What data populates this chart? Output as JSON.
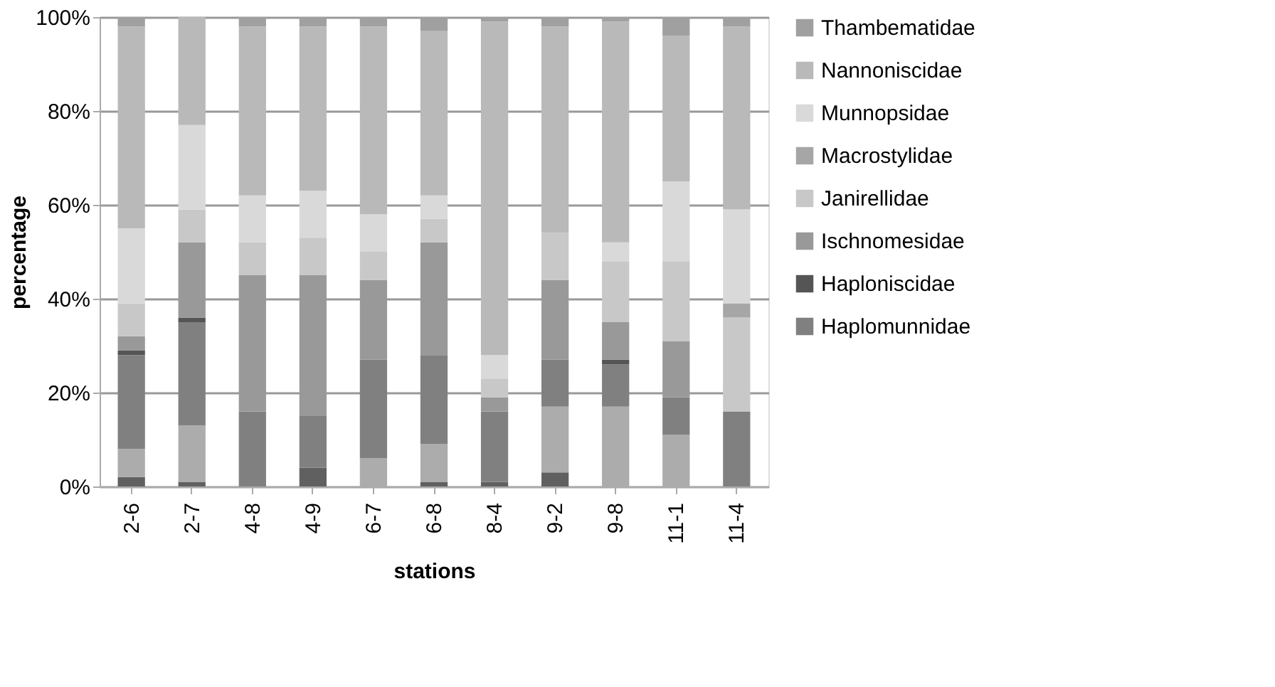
{
  "chart_data": {
    "type": "bar",
    "stacked": true,
    "xlabel": "stations",
    "ylabel": "percentage",
    "categories": [
      "2-6",
      "2-7",
      "4-8",
      "4-9",
      "6-7",
      "6-8",
      "8-4",
      "9-2",
      "9-8",
      "11-1",
      "11-4"
    ],
    "ylim": [
      0,
      100
    ],
    "yticks": [
      {
        "value": 0,
        "label": "0%"
      },
      {
        "value": 20,
        "label": "20%"
      },
      {
        "value": 40,
        "label": "40%"
      },
      {
        "value": 60,
        "label": "60%"
      },
      {
        "value": 80,
        "label": "80%"
      },
      {
        "value": 100,
        "label": "100%"
      }
    ],
    "grid": "y",
    "legend": "right",
    "series": [
      {
        "color": "#606060",
        "values": [
          2,
          1,
          0,
          4,
          0,
          1,
          1,
          3,
          0,
          0,
          0
        ]
      },
      {
        "color": "#acacac",
        "values": [
          6,
          12,
          0,
          0,
          6,
          8,
          0,
          14,
          17,
          11,
          0
        ]
      },
      {
        "name": "Haplomunnidae",
        "color": "#808080",
        "values": [
          20,
          22,
          16,
          11,
          21,
          19,
          15,
          10,
          9,
          8,
          16
        ]
      },
      {
        "name": "Haploniscidae",
        "color": "#555555",
        "values": [
          1,
          1,
          0,
          0,
          0,
          0,
          0,
          0,
          1,
          0,
          0
        ]
      },
      {
        "name": "Ischnomesidae",
        "color": "#999999",
        "values": [
          3,
          16,
          29,
          30,
          17,
          24,
          3,
          17,
          8,
          12,
          0
        ]
      },
      {
        "name": "Janirellidae",
        "color": "#c8c8c8",
        "values": [
          7,
          7,
          7,
          8,
          6,
          5,
          4,
          10,
          13,
          17,
          20
        ]
      },
      {
        "name": "Macrostylidae",
        "color": "#a6a6a6",
        "values": [
          0,
          0,
          0,
          0,
          0,
          0,
          0,
          0,
          0,
          0,
          3
        ]
      },
      {
        "name": "Munnopsidae",
        "color": "#d9d9d9",
        "values": [
          16,
          18,
          10,
          10,
          8,
          5,
          5,
          0,
          4,
          17,
          20
        ]
      },
      {
        "name": "Nannoniscidae",
        "color": "#b9b9b9",
        "values": [
          43,
          23,
          36,
          35,
          40,
          35,
          71,
          44,
          47,
          31,
          39
        ]
      },
      {
        "name": "Thambematidae",
        "color": "#a0a0a0",
        "values": [
          2,
          0,
          2,
          2,
          2,
          3,
          1,
          2,
          1,
          4,
          2
        ]
      }
    ]
  }
}
